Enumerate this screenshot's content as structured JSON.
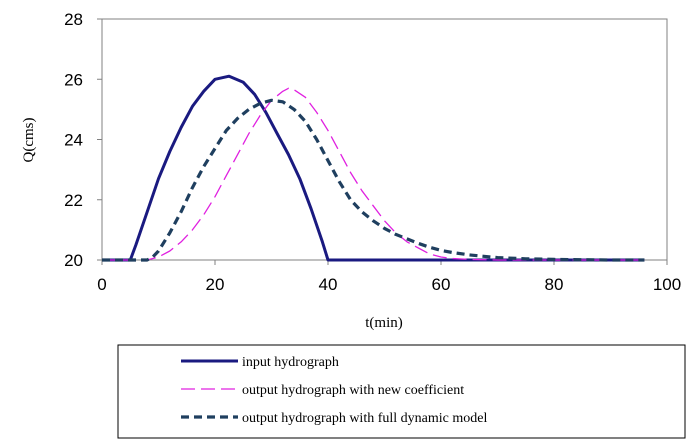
{
  "chart_data": {
    "type": "line",
    "title": "",
    "xlabel": "t(min)",
    "ylabel": "Q(cms)",
    "xlim": [
      0,
      100
    ],
    "ylim": [
      20,
      28
    ],
    "x_ticks": [
      0,
      20,
      40,
      60,
      80,
      100
    ],
    "y_ticks": [
      20,
      22,
      24,
      26,
      28
    ],
    "grid": false,
    "legend_position": "bottom",
    "series": [
      {
        "name": "input hydrograph",
        "color": "#1a1a80",
        "style": "solid",
        "x": [
          0,
          5,
          6,
          8,
          10,
          12,
          14,
          16,
          18,
          20,
          22.5,
          25,
          27,
          29,
          31,
          33,
          35,
          37,
          39,
          40,
          41,
          96
        ],
        "y": [
          20,
          20,
          20.5,
          21.6,
          22.7,
          23.6,
          24.4,
          25.1,
          25.6,
          26.0,
          26.1,
          25.9,
          25.5,
          24.9,
          24.2,
          23.5,
          22.7,
          21.7,
          20.6,
          20,
          20,
          20
        ]
      },
      {
        "name": "output hydrograph with new coefficient",
        "color": "#e020e0",
        "style": "dash",
        "x": [
          0,
          8,
          10,
          12,
          14,
          16,
          18,
          20,
          22,
          24,
          26,
          28,
          30,
          32,
          33,
          34,
          36,
          38,
          40,
          42,
          44,
          46,
          48,
          50,
          52,
          54,
          56,
          58,
          60,
          62,
          65,
          70,
          80,
          96
        ],
        "y": [
          20,
          20,
          20.1,
          20.3,
          20.6,
          21.0,
          21.5,
          22.1,
          22.8,
          23.5,
          24.2,
          24.8,
          25.3,
          25.6,
          25.7,
          25.65,
          25.4,
          24.9,
          24.3,
          23.6,
          22.9,
          22.3,
          21.8,
          21.3,
          20.9,
          20.6,
          20.4,
          20.2,
          20.1,
          20.05,
          20.02,
          20,
          20,
          20
        ]
      },
      {
        "name": "output hydrograph with full dynamic model",
        "color": "#1f3f5f",
        "style": "dash",
        "x": [
          0,
          8,
          9,
          10,
          12,
          14,
          16,
          18,
          20,
          22,
          24,
          26,
          28,
          30,
          32,
          34,
          36,
          38,
          40,
          42,
          44,
          46,
          48,
          50,
          52,
          54,
          56,
          58,
          60,
          62,
          65,
          70,
          75,
          80,
          90,
          96
        ],
        "y": [
          20,
          20,
          20.1,
          20.3,
          20.9,
          21.6,
          22.4,
          23.1,
          23.7,
          24.3,
          24.7,
          25.0,
          25.2,
          25.3,
          25.25,
          25.0,
          24.6,
          24.0,
          23.3,
          22.6,
          22.0,
          21.6,
          21.3,
          21.05,
          20.85,
          20.7,
          20.55,
          20.42,
          20.32,
          20.25,
          20.17,
          20.08,
          20.04,
          20.02,
          20.0,
          20.0
        ]
      }
    ]
  }
}
